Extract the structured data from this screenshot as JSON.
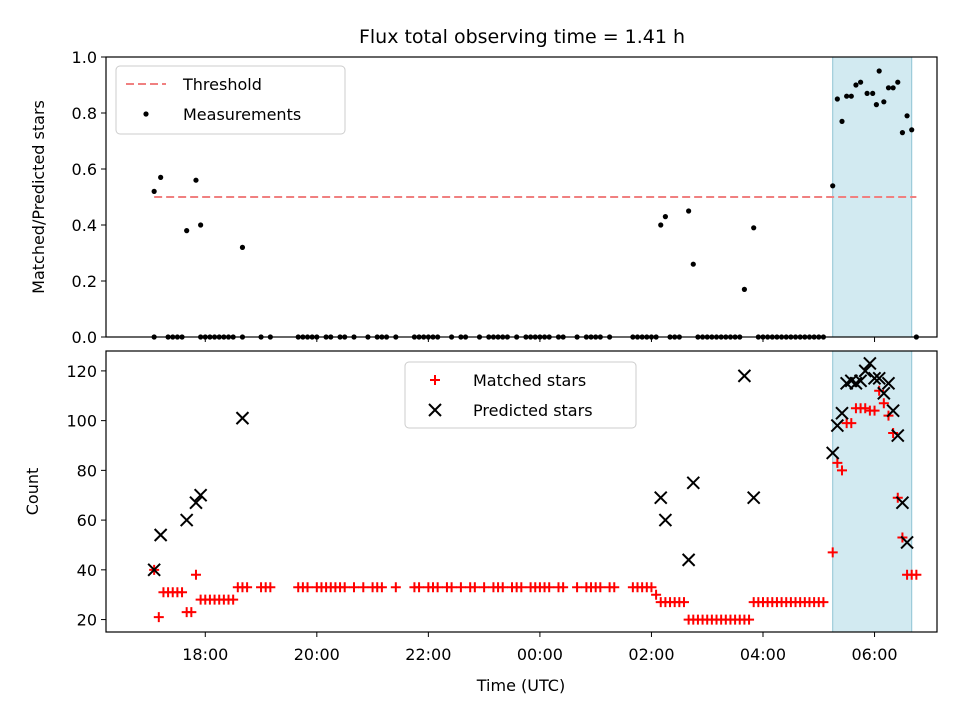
{
  "title": "Flux total observing time = 1.41 h",
  "chart_data": [
    {
      "type": "scatter",
      "ylabel": "Matched/Predicted stars",
      "ylim": [
        0,
        1.0
      ],
      "yticks": [
        "0.0",
        "0.2",
        "0.4",
        "0.6",
        "0.8",
        "1.0"
      ],
      "ytick_values": [
        0,
        0.2,
        0.4,
        0.6,
        0.8,
        1.0
      ],
      "xlim_hours": [
        16.2,
        7.1
      ],
      "legend": {
        "placement": "upper left",
        "entries": [
          "Threshold",
          "Measurements"
        ]
      },
      "threshold": {
        "name": "Threshold",
        "value": 0.5,
        "x_range": [
          "17:05",
          "06:45"
        ],
        "color": "#f08080",
        "style": "dashed"
      },
      "highlight": {
        "x_range": [
          "05:15",
          "06:40"
        ],
        "color": "#add8e6"
      },
      "series": [
        {
          "name": "Measurements",
          "color": "#000000",
          "x": [
            "17:05",
            "17:12",
            "17:40",
            "17:50",
            "17:55",
            "18:40",
            "02:10",
            "02:15",
            "02:40",
            "02:45",
            "03:40",
            "03:50",
            "05:15",
            "05:20",
            "05:25",
            "05:30",
            "05:35",
            "05:40",
            "05:45",
            "05:52",
            "05:58",
            "06:02",
            "06:05",
            "06:10",
            "06:15",
            "06:20",
            "06:25",
            "06:30",
            "06:35",
            "06:40",
            "06:45"
          ],
          "y": [
            0.52,
            0.57,
            0.38,
            0.56,
            0.4,
            0.32,
            0.4,
            0.43,
            0.45,
            0.26,
            0.17,
            0.39,
            0.54,
            0.85,
            0.77,
            0.86,
            0.86,
            0.9,
            0.91,
            0.87,
            0.87,
            0.83,
            0.95,
            0.84,
            0.89,
            0.89,
            0.91,
            0.73,
            0.79,
            0.74,
            0.0
          ]
        },
        {
          "name": "Measurements (zero)",
          "color": "#000000",
          "x": [
            "17:05",
            "17:20",
            "17:25",
            "17:30",
            "17:35",
            "17:55",
            "18:00",
            "18:05",
            "18:10",
            "18:15",
            "18:20",
            "18:25",
            "18:30",
            "18:40",
            "19:00",
            "19:10",
            "19:40",
            "19:45",
            "19:50",
            "19:55",
            "20:00",
            "20:10",
            "20:15",
            "20:25",
            "20:30",
            "20:40",
            "20:55",
            "21:05",
            "21:10",
            "21:15",
            "21:25",
            "21:45",
            "21:50",
            "21:55",
            "22:00",
            "22:05",
            "22:10",
            "22:25",
            "22:35",
            "22:40",
            "22:55",
            "23:05",
            "23:10",
            "23:15",
            "23:20",
            "23:25",
            "23:35",
            "23:45",
            "23:50",
            "23:55",
            "00:00",
            "00:05",
            "00:10",
            "00:20",
            "00:25",
            "00:40",
            "00:50",
            "00:55",
            "01:00",
            "01:05",
            "01:15",
            "01:40",
            "01:45",
            "01:50",
            "01:55",
            "02:00",
            "02:05",
            "02:20",
            "02:25",
            "02:30",
            "02:50",
            "02:55",
            "03:00",
            "03:05",
            "03:10",
            "03:15",
            "03:20",
            "03:25",
            "03:30",
            "03:35",
            "03:55",
            "04:00",
            "04:05",
            "04:10",
            "04:15",
            "04:20",
            "04:25",
            "04:30",
            "04:35",
            "04:40",
            "04:45",
            "04:50",
            "04:55",
            "05:00",
            "05:05"
          ],
          "y": [
            0,
            0,
            0,
            0,
            0,
            0,
            0,
            0,
            0,
            0,
            0,
            0,
            0,
            0,
            0,
            0,
            0,
            0,
            0,
            0,
            0,
            0,
            0,
            0,
            0,
            0,
            0,
            0,
            0,
            0,
            0,
            0,
            0,
            0,
            0,
            0,
            0,
            0,
            0,
            0,
            0,
            0,
            0,
            0,
            0,
            0,
            0,
            0,
            0,
            0,
            0,
            0,
            0,
            0,
            0,
            0,
            0,
            0,
            0,
            0,
            0,
            0,
            0,
            0,
            0,
            0,
            0,
            0,
            0,
            0,
            0,
            0,
            0,
            0,
            0,
            0,
            0,
            0,
            0,
            0,
            0,
            0,
            0,
            0,
            0,
            0,
            0,
            0,
            0,
            0,
            0,
            0,
            0,
            0,
            0
          ]
        }
      ]
    },
    {
      "type": "scatter",
      "xlabel": "Time (UTC)",
      "ylabel": "Count",
      "ylim": [
        15,
        128
      ],
      "yticks": [
        "20",
        "40",
        "60",
        "80",
        "100",
        "120"
      ],
      "ytick_values": [
        20,
        40,
        60,
        80,
        100,
        120
      ],
      "xticks": [
        "18:00",
        "20:00",
        "22:00",
        "00:00",
        "02:00",
        "04:00",
        "06:00"
      ],
      "xtick_hours": [
        18,
        20,
        22,
        24,
        26,
        28,
        30
      ],
      "legend": {
        "placement": "upper center",
        "entries": [
          "Matched stars",
          "Predicted stars"
        ]
      },
      "highlight": {
        "x_range": [
          "05:15",
          "06:40"
        ],
        "color": "#add8e6"
      },
      "series": [
        {
          "name": "Matched stars",
          "marker": "+",
          "color": "#ff0000",
          "x": [
            "17:05",
            "17:10",
            "17:15",
            "17:20",
            "17:25",
            "17:30",
            "17:35",
            "17:40",
            "17:45",
            "17:50",
            "17:55",
            "18:00",
            "18:05",
            "18:10",
            "18:15",
            "18:20",
            "18:25",
            "18:30",
            "18:35",
            "18:40",
            "18:45",
            "19:00",
            "19:05",
            "19:10",
            "19:40",
            "19:45",
            "19:50",
            "20:00",
            "20:05",
            "20:10",
            "20:15",
            "20:20",
            "20:25",
            "20:30",
            "20:40",
            "20:50",
            "21:00",
            "21:05",
            "21:10",
            "21:25",
            "21:45",
            "21:50",
            "22:00",
            "22:05",
            "22:10",
            "22:20",
            "22:25",
            "22:35",
            "22:45",
            "22:50",
            "23:00",
            "23:10",
            "23:15",
            "23:20",
            "23:30",
            "23:35",
            "23:40",
            "23:50",
            "23:55",
            "00:00",
            "00:05",
            "00:10",
            "00:20",
            "00:25",
            "00:40",
            "00:50",
            "00:55",
            "01:00",
            "01:05",
            "01:15",
            "01:20",
            "01:40",
            "01:45",
            "01:50",
            "01:55",
            "02:00",
            "02:05",
            "02:10",
            "02:15",
            "02:20",
            "02:25",
            "02:30",
            "02:35",
            "02:40",
            "02:45",
            "02:50",
            "02:55",
            "03:00",
            "03:05",
            "03:10",
            "03:15",
            "03:20",
            "03:25",
            "03:30",
            "03:35",
            "03:40",
            "03:45",
            "03:50",
            "03:55",
            "04:00",
            "04:05",
            "04:10",
            "04:15",
            "04:20",
            "04:25",
            "04:30",
            "04:35",
            "04:40",
            "04:45",
            "04:50",
            "04:55",
            "05:00",
            "05:05",
            "05:15",
            "05:20",
            "05:25",
            "05:30",
            "05:35",
            "05:40",
            "05:45",
            "05:50",
            "05:55",
            "06:00",
            "06:05",
            "06:10",
            "06:15",
            "06:20",
            "06:25",
            "06:30",
            "06:35",
            "06:40",
            "06:45"
          ],
          "y": [
            40,
            21,
            31,
            31,
            31,
            31,
            31,
            23,
            23,
            38,
            28,
            28,
            28,
            28,
            28,
            28,
            28,
            28,
            33,
            33,
            33,
            33,
            33,
            33,
            33,
            33,
            33,
            33,
            33,
            33,
            33,
            33,
            33,
            33,
            33,
            33,
            33,
            33,
            33,
            33,
            33,
            33,
            33,
            33,
            33,
            33,
            33,
            33,
            33,
            33,
            33,
            33,
            33,
            33,
            33,
            33,
            33,
            33,
            33,
            33,
            33,
            33,
            33,
            33,
            33,
            33,
            33,
            33,
            33,
            33,
            33,
            33,
            33,
            33,
            33,
            33,
            30,
            27,
            27,
            27,
            27,
            27,
            27,
            20,
            20,
            20,
            20,
            20,
            20,
            20,
            20,
            20,
            20,
            20,
            20,
            20,
            20,
            27,
            27,
            27,
            27,
            27,
            27,
            27,
            27,
            27,
            27,
            27,
            27,
            27,
            27,
            27,
            27,
            47,
            83,
            80,
            99,
            99,
            105,
            105,
            105,
            104,
            104,
            112,
            107,
            102,
            95,
            69,
            53,
            38,
            38,
            38
          ]
        },
        {
          "name": "Predicted stars",
          "marker": "x",
          "color": "#000000",
          "x": [
            "17:05",
            "17:12",
            "17:40",
            "17:50",
            "17:55",
            "18:40",
            "02:10",
            "02:15",
            "02:40",
            "02:45",
            "03:40",
            "03:50",
            "05:15",
            "05:20",
            "05:25",
            "05:30",
            "05:35",
            "05:40",
            "05:45",
            "05:50",
            "05:55",
            "06:00",
            "06:05",
            "06:10",
            "06:15",
            "06:20",
            "06:25",
            "06:30",
            "06:35"
          ],
          "y": [
            40,
            54,
            60,
            67,
            70,
            101,
            69,
            60,
            44,
            75,
            118,
            69,
            87,
            98,
            103,
            115,
            116,
            115,
            116,
            120,
            123,
            117,
            117,
            111,
            115,
            104,
            94,
            67,
            51
          ]
        }
      ]
    }
  ]
}
